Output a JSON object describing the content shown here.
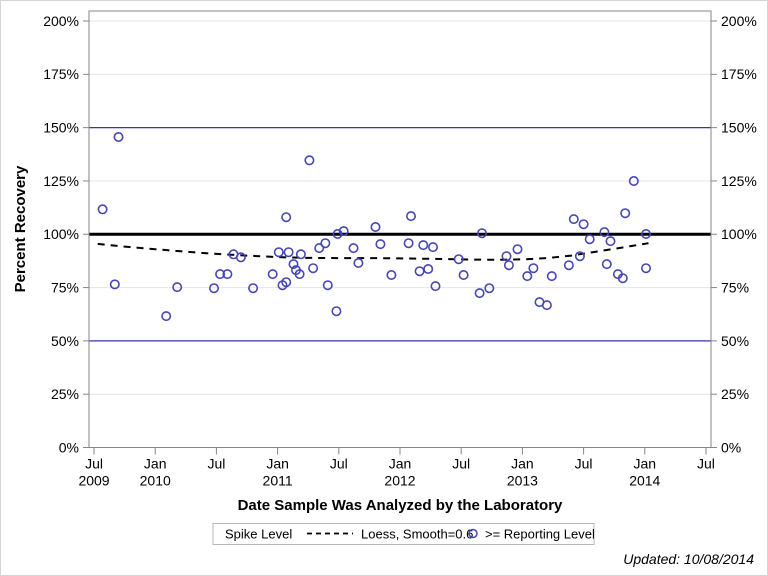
{
  "chart_data": {
    "type": "scatter",
    "title": "",
    "xlabel": "Date Sample Was Analyzed by the Laboratory",
    "ylabel": "Percent Recovery",
    "footnote": "Updated: 10/08/2014",
    "xlim": [
      2009.459,
      2014.541
    ],
    "ylim": [
      0,
      204.7
    ],
    "grid": "horizontal-only",
    "y_axis_mirrored": true,
    "legend_position": "bottom-center",
    "colors": {
      "marker": "#4545b5",
      "reference_blue": "#3535ae",
      "spike_line": "#000000",
      "loess_line": "#000000",
      "grid": "#e4e4e4",
      "axis": "#868686",
      "legend_border": "#b8b8b8",
      "text": "#000000"
    },
    "y_ticks": [
      {
        "value": 0,
        "label": "0%"
      },
      {
        "value": 25,
        "label": "25%"
      },
      {
        "value": 50,
        "label": "50%"
      },
      {
        "value": 75,
        "label": "75%"
      },
      {
        "value": 100,
        "label": "100%"
      },
      {
        "value": 125,
        "label": "125%"
      },
      {
        "value": 150,
        "label": "150%"
      },
      {
        "value": 175,
        "label": "175%"
      },
      {
        "value": 200,
        "label": "200%"
      }
    ],
    "x_ticks": [
      {
        "value": 2009.5,
        "label": "Jul",
        "year": "2009"
      },
      {
        "value": 2010.0,
        "label": "Jan",
        "year": "2010"
      },
      {
        "value": 2010.5,
        "label": "Jul",
        "year": ""
      },
      {
        "value": 2011.0,
        "label": "Jan",
        "year": "2011"
      },
      {
        "value": 2011.5,
        "label": "Jul",
        "year": ""
      },
      {
        "value": 2012.0,
        "label": "Jan",
        "year": "2012"
      },
      {
        "value": 2012.5,
        "label": "Jul",
        "year": ""
      },
      {
        "value": 2013.0,
        "label": "Jan",
        "year": "2013"
      },
      {
        "value": 2013.5,
        "label": "Jul",
        "year": ""
      },
      {
        "value": 2014.0,
        "label": "Jan",
        "year": "2014"
      },
      {
        "value": 2014.5,
        "label": "Jul",
        "year": ""
      }
    ],
    "reference_lines": [
      {
        "value": 150,
        "color": "#3535ae",
        "width": 1.3,
        "role": "upper-control-limit"
      },
      {
        "value": 50,
        "color": "#3535ae",
        "width": 1.3,
        "role": "lower-control-limit"
      },
      {
        "value": 100,
        "color": "#000000",
        "width": 3,
        "role": "spike-level"
      }
    ],
    "series": [
      {
        "name": ">= Reporting Level",
        "type": "scatter",
        "marker": "open-circle",
        "color": "#4545b5",
        "points": [
          [
            2009.57,
            111.7
          ],
          [
            2009.67,
            76.5
          ],
          [
            2009.7,
            145.6
          ],
          [
            2010.09,
            61.6
          ],
          [
            2010.18,
            75.2
          ],
          [
            2010.48,
            74.7
          ],
          [
            2010.53,
            81.3
          ],
          [
            2010.59,
            81.3
          ],
          [
            2010.64,
            90.6
          ],
          [
            2010.7,
            89.2
          ],
          [
            2010.8,
            74.7
          ],
          [
            2010.96,
            81.3
          ],
          [
            2011.01,
            91.6
          ],
          [
            2011.04,
            76.1
          ],
          [
            2011.07,
            77.5
          ],
          [
            2011.07,
            108.0
          ],
          [
            2011.09,
            91.6
          ],
          [
            2011.13,
            86.0
          ],
          [
            2011.15,
            83.2
          ],
          [
            2011.18,
            81.3
          ],
          [
            2011.19,
            90.6
          ],
          [
            2011.26,
            134.7
          ],
          [
            2011.29,
            84.1
          ],
          [
            2011.34,
            93.5
          ],
          [
            2011.39,
            95.8
          ],
          [
            2011.41,
            76.1
          ],
          [
            2011.48,
            63.9
          ],
          [
            2011.49,
            100.1
          ],
          [
            2011.54,
            101.5
          ],
          [
            2011.62,
            93.5
          ],
          [
            2011.66,
            86.5
          ],
          [
            2011.8,
            103.4
          ],
          [
            2011.84,
            95.4
          ],
          [
            2011.93,
            80.9
          ],
          [
            2012.07,
            95.8
          ],
          [
            2012.09,
            108.5
          ],
          [
            2012.16,
            82.7
          ],
          [
            2012.19,
            94.9
          ],
          [
            2012.23,
            83.7
          ],
          [
            2012.27,
            94.0
          ],
          [
            2012.29,
            75.7
          ],
          [
            2012.48,
            88.3
          ],
          [
            2012.52,
            80.9
          ],
          [
            2012.65,
            72.4
          ],
          [
            2012.67,
            100.5
          ],
          [
            2012.73,
            74.7
          ],
          [
            2012.87,
            89.7
          ],
          [
            2012.89,
            85.5
          ],
          [
            2012.96,
            93.0
          ],
          [
            2013.04,
            80.4
          ],
          [
            2013.09,
            84.1
          ],
          [
            2013.14,
            68.2
          ],
          [
            2013.2,
            66.8
          ],
          [
            2013.24,
            80.4
          ],
          [
            2013.38,
            85.5
          ],
          [
            2013.42,
            107.1
          ],
          [
            2013.47,
            89.7
          ],
          [
            2013.5,
            104.7
          ],
          [
            2013.55,
            97.7
          ],
          [
            2013.67,
            101.0
          ],
          [
            2013.69,
            86.0
          ],
          [
            2013.72,
            96.8
          ],
          [
            2013.78,
            81.3
          ],
          [
            2013.82,
            79.4
          ],
          [
            2013.84,
            109.9
          ],
          [
            2013.91,
            125.0
          ],
          [
            2014.01,
            100.1
          ],
          [
            2014.01,
            84.1
          ]
        ]
      },
      {
        "name": "Loess, Smooth=0.6",
        "type": "line",
        "style": "dashed",
        "color": "#000000",
        "points": [
          [
            2009.53,
            95.5
          ],
          [
            2009.75,
            94.2
          ],
          [
            2010.0,
            93.0
          ],
          [
            2010.25,
            91.8
          ],
          [
            2010.5,
            90.8
          ],
          [
            2010.75,
            90.0
          ],
          [
            2011.0,
            89.3
          ],
          [
            2011.25,
            88.9
          ],
          [
            2011.5,
            88.8
          ],
          [
            2011.75,
            88.8
          ],
          [
            2012.0,
            88.7
          ],
          [
            2012.25,
            88.5
          ],
          [
            2012.5,
            88.2
          ],
          [
            2012.75,
            88.0
          ],
          [
            2013.0,
            88.2
          ],
          [
            2013.2,
            88.8
          ],
          [
            2013.4,
            90.0
          ],
          [
            2013.6,
            91.8
          ],
          [
            2013.8,
            93.6
          ],
          [
            2014.03,
            95.8
          ]
        ]
      }
    ],
    "legend": {
      "entries": [
        {
          "label": "Spike Level",
          "symbol": "none"
        },
        {
          "label": "Loess, Smooth=0.6",
          "symbol": "dashed-line"
        },
        {
          "label": ">= Reporting Level",
          "symbol": "open-circle"
        }
      ]
    }
  }
}
